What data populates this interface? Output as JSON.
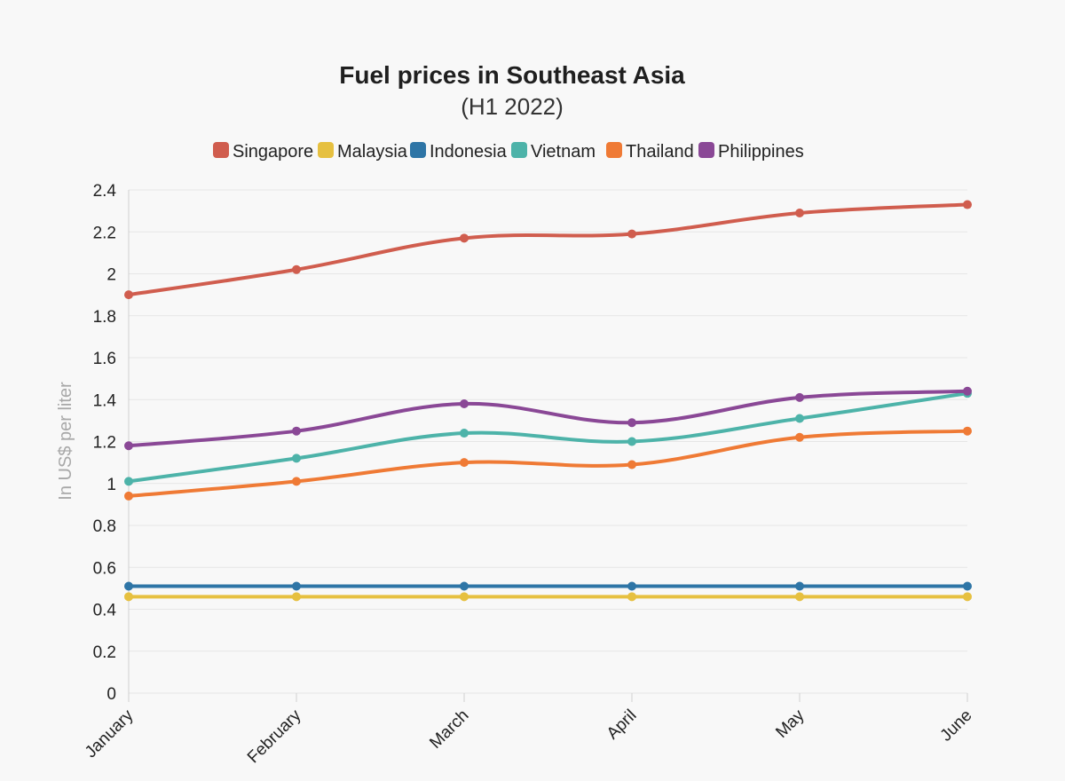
{
  "chart_data": {
    "type": "line",
    "title": "Fuel prices in Southeast Asia",
    "subtitle": "(H1 2022)",
    "ylabel": "In US$ per liter",
    "xlabel": "",
    "categories": [
      "January",
      "February",
      "March",
      "April",
      "May",
      "June"
    ],
    "ylim": [
      0,
      2.4
    ],
    "yticks": [
      "0",
      "0.2",
      "0.4",
      "0.6",
      "0.8",
      "1",
      "1.2",
      "1.4",
      "1.6",
      "1.8",
      "2",
      "2.2",
      "2.4"
    ],
    "grid": true,
    "legend_position": "top",
    "series": [
      {
        "name": "Singapore",
        "color": "#d05d4e",
        "values": [
          1.9,
          2.02,
          2.17,
          2.19,
          2.29,
          2.33
        ]
      },
      {
        "name": "Malaysia",
        "color": "#e6c040",
        "values": [
          0.46,
          0.46,
          0.46,
          0.46,
          0.46,
          0.46
        ]
      },
      {
        "name": "Indonesia",
        "color": "#2e75a6",
        "values": [
          0.51,
          0.51,
          0.51,
          0.51,
          0.51,
          0.51
        ]
      },
      {
        "name": "Vietnam",
        "color": "#4db3a9",
        "values": [
          1.01,
          1.12,
          1.24,
          1.2,
          1.31,
          1.43
        ]
      },
      {
        "name": "Thailand",
        "color": "#ef7a35",
        "values": [
          0.94,
          1.01,
          1.1,
          1.09,
          1.22,
          1.25
        ]
      },
      {
        "name": "Philippines",
        "color": "#8a4896",
        "values": [
          1.18,
          1.25,
          1.38,
          1.29,
          1.41,
          1.44
        ]
      }
    ]
  }
}
